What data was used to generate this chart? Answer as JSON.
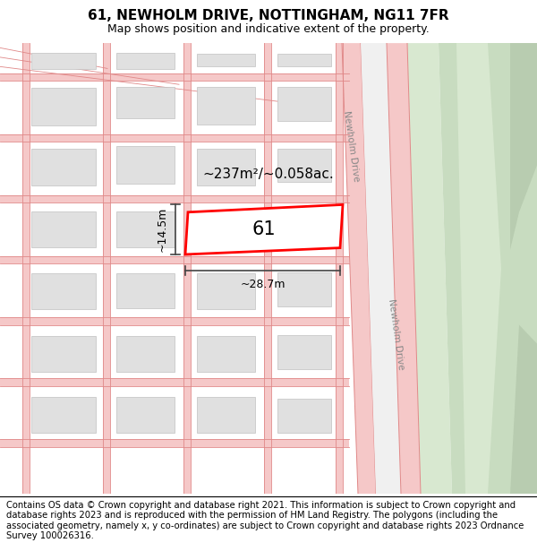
{
  "title_line1": "61, NEWHOLM DRIVE, NOTTINGHAM, NG11 7FR",
  "title_line2": "Map shows position and indicative extent of the property.",
  "footer_text": "Contains OS data © Crown copyright and database right 2021. This information is subject to Crown copyright and database rights 2023 and is reproduced with the permission of HM Land Registry. The polygons (including the associated geometry, namely x, y co-ordinates) are subject to Crown copyright and database rights 2023 Ordnance Survey 100026316.",
  "bg_color": "#ffffff",
  "map_bg": "#f8f8f8",
  "road_color": "#f5c8c8",
  "road_line_color": "#e08888",
  "building_fill": "#e0e0e0",
  "building_edge": "#c0c0c0",
  "green_strip_light": "#d8e8d0",
  "green_area_color": "#c8dcc0",
  "green_path_color": "#b8ccb0",
  "highlight_color": "#ff0000",
  "highlight_fill": "#ffffff",
  "dimension_color": "#444444",
  "area_text": "~237m²/~0.058ac.",
  "number_text": "61",
  "dim_width": "~28.7m",
  "dim_height": "~14.5m",
  "road_label": "Newholm Drive",
  "title_fontsize": 11,
  "subtitle_fontsize": 9,
  "footer_fontsize": 7.2,
  "road_label_color": "#888888"
}
